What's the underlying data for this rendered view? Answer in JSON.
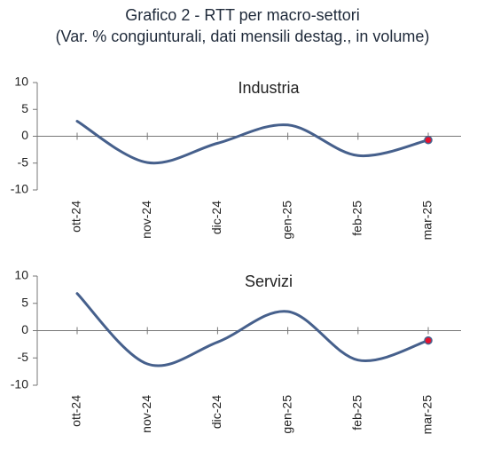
{
  "title": "Grafico 2 - RTT per macro-settori",
  "subtitle": "(Var. % congiunturali, dati mensili destag., in volume)",
  "colors": {
    "line": "#46608c",
    "marker": "#e8112d",
    "axis": "#777777"
  },
  "chart_data": [
    {
      "type": "line",
      "title": "Industria",
      "categories": [
        "ott-24",
        "nov-24",
        "dic-24",
        "gen-25",
        "feb-25",
        "mar-25"
      ],
      "values": [
        2.8,
        -4.9,
        -1.3,
        2.1,
        -3.6,
        -0.7
      ],
      "ylim": [
        -10,
        10
      ],
      "yticks": [
        10,
        5,
        0,
        -5,
        -10
      ],
      "highlight_last_point": true,
      "grid": false
    },
    {
      "type": "line",
      "title": "Servizi",
      "categories": [
        "ott-24",
        "nov-24",
        "dic-24",
        "gen-25",
        "feb-25",
        "mar-25"
      ],
      "values": [
        6.8,
        -6.1,
        -2.1,
        3.5,
        -5.4,
        -1.8
      ],
      "ylim": [
        -10,
        10
      ],
      "yticks": [
        10,
        5,
        0,
        -5,
        -10
      ],
      "highlight_last_point": true,
      "grid": false
    }
  ]
}
